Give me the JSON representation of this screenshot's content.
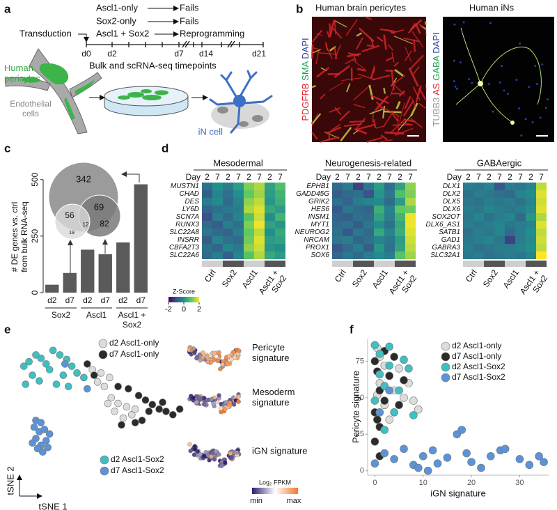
{
  "panel_labels": [
    "a",
    "b",
    "c",
    "d",
    "e",
    "f"
  ],
  "panel_a": {
    "transduction": "Transduction",
    "conditions": [
      "Ascl1-only",
      "Sox2-only",
      "Ascl1 + Sox2"
    ],
    "outcomes": [
      "Fails",
      "Fails",
      "Reprogramming"
    ],
    "timepoints": [
      "d0",
      "d2",
      "d7",
      "d14",
      "d21"
    ],
    "timeline_label": "Bulk and scRNA-seq timepoints",
    "cell_labels": [
      "Human pericytes",
      "Endothelial cells",
      "iN cell"
    ]
  },
  "panel_b": {
    "images": [
      {
        "title": "Human brain pericytes",
        "stains": [
          "PDGFRB",
          "SMA",
          "DAPI"
        ],
        "stain_colors": [
          "#e8202a",
          "#1aa34a",
          "#2b3f9e"
        ]
      },
      {
        "title": "Human iNs",
        "stains": [
          "TUBB3",
          "AS",
          "GABA",
          "DAPI"
        ],
        "stain_colors": [
          "#9a9a9a",
          "#e8202a",
          "#1aa34a",
          "#2b3f9e"
        ]
      }
    ]
  },
  "chart_data": [
    {
      "type": "bar",
      "y_label": [
        "# DE genes vs. ctrl",
        "from bulk RNA-seq"
      ],
      "categories": [
        "d2",
        "d7",
        "d2",
        "d7",
        "d2",
        "d7"
      ],
      "groups": [
        "Sox2",
        "Ascl1",
        "Ascl1 + Sox2"
      ],
      "values": [
        35,
        87,
        190,
        170,
        222,
        479
      ],
      "color": "#5a5a5a",
      "ylim": [
        0,
        530
      ],
      "yticks": [
        0,
        250,
        500
      ],
      "venn": [
        342,
        56,
        69,
        82,
        12,
        19
      ]
    },
    {
      "type": "heatmap",
      "title": "Mesodermal",
      "x_label": "Day",
      "x": [
        2,
        7,
        2,
        7,
        2,
        7,
        2,
        7
      ],
      "groups": [
        "Ctrl",
        "Sox2",
        "Ascl1",
        "Ascl1 + Sox2"
      ],
      "group_colors": [
        "#cfcfcf",
        "#555555",
        "#cfcfcf",
        "#555555"
      ],
      "rows": [
        "MUSTN1",
        "CHAD",
        "DES",
        "LY6D",
        "SCN7A",
        "RUNX3",
        "SLC22A8",
        "INSRR",
        "CBFA2T3",
        "SLC22A6"
      ],
      "values": [
        [
          -0.5,
          0,
          -0.3,
          0.2,
          1.2,
          1.5,
          0.3,
          0.8
        ],
        [
          -0.8,
          -0.2,
          -0.5,
          0,
          1.0,
          1.4,
          0.2,
          0.6
        ],
        [
          -0.3,
          -0.1,
          -0.6,
          -0.2,
          1.3,
          1.6,
          0.1,
          0.5
        ],
        [
          -0.7,
          -0.5,
          -0.4,
          -0.3,
          1.5,
          1.8,
          0.4,
          0.2
        ],
        [
          -1,
          -0.3,
          -0.6,
          -0.2,
          0.9,
          1.7,
          0,
          0.6
        ],
        [
          -0.6,
          -0.8,
          -0.3,
          -0.5,
          1.2,
          1.9,
          0.3,
          0.1
        ],
        [
          -0.4,
          -0.6,
          -0.7,
          -0.3,
          1.0,
          1.6,
          0,
          0.4
        ],
        [
          -0.8,
          -0.2,
          -0.5,
          -0.6,
          1.1,
          1.8,
          0.2,
          0.3
        ],
        [
          -0.5,
          -0.7,
          -0.2,
          -0.4,
          1.3,
          1.7,
          0.1,
          0
        ],
        [
          -0.6,
          -0.3,
          -0.8,
          -0.2,
          0.9,
          1.5,
          0.4,
          0.2
        ]
      ],
      "colorbar": {
        "title": "Z-Score",
        "lim": [
          -2,
          2
        ],
        "ticks": [
          -2,
          0,
          2
        ],
        "colors": [
          "#440154",
          "#3b528b",
          "#21908d",
          "#5dc963",
          "#fde725"
        ]
      }
    },
    {
      "type": "heatmap",
      "title": "Neurogenesis-related",
      "x_label": "Day",
      "x": [
        2,
        7,
        2,
        7,
        2,
        7,
        2,
        7
      ],
      "groups": [
        "Ctrl",
        "Sox2",
        "Ascl1",
        "Ascl1 + Sox2"
      ],
      "group_colors": [
        "#cfcfcf",
        "#555555",
        "#cfcfcf",
        "#555555"
      ],
      "rows": [
        "EPHB1",
        "GADD45G",
        "GRIK2",
        "HES6",
        "INSM1",
        "MYT1",
        "NEUROG2",
        "NRCAM",
        "PROX1",
        "SOX6"
      ],
      "values": [
        [
          -0.6,
          -0.3,
          -1.2,
          -0.4,
          0.2,
          -0.5,
          0.3,
          1.3
        ],
        [
          -0.8,
          -0.6,
          -0.5,
          -1.0,
          0.1,
          -0.4,
          0.8,
          1.2
        ],
        [
          -0.5,
          -0.7,
          -0.3,
          -0.2,
          -0.1,
          -0.6,
          0.2,
          1.5
        ],
        [
          -0.9,
          -0.4,
          -0.6,
          -0.7,
          0.5,
          -0.2,
          1.0,
          1.1
        ],
        [
          -0.7,
          -0.8,
          -0.5,
          -0.6,
          0.3,
          -0.3,
          0.6,
          1.9
        ],
        [
          -0.6,
          -0.5,
          -0.8,
          -0.4,
          0,
          -0.5,
          0.4,
          1.9
        ],
        [
          -0.5,
          -0.9,
          -0.4,
          -0.6,
          0.4,
          -0.2,
          0.5,
          1.8
        ],
        [
          -0.4,
          -0.3,
          -0.7,
          -0.5,
          -0.2,
          -0.4,
          0.2,
          1.7
        ],
        [
          -0.9,
          -0.6,
          -0.3,
          -0.8,
          0.1,
          -0.5,
          0.3,
          1.6
        ],
        [
          -0.7,
          -0.4,
          -0.6,
          -0.3,
          -0.1,
          -0.3,
          0.9,
          1.4
        ]
      ]
    },
    {
      "type": "heatmap",
      "title": "GABAergic",
      "x_label": "Day",
      "x": [
        2,
        7,
        2,
        7,
        2,
        7,
        2,
        7
      ],
      "groups": [
        "Ctrl",
        "Sox2",
        "Ascl1",
        "Ascl1 + Sox2"
      ],
      "group_colors": [
        "#cfcfcf",
        "#555555",
        "#cfcfcf",
        "#555555"
      ],
      "rows": [
        "DLX1",
        "DLX2",
        "DLX5",
        "DLX6",
        "SOX2OT",
        "DLX6_AS1",
        "SATB1",
        "GAD1",
        "GABRA3",
        "SLC32A1"
      ],
      "values": [
        [
          -0.3,
          -0.4,
          -0.2,
          -0.9,
          -0.3,
          -0.4,
          -0.2,
          1.6
        ],
        [
          -0.5,
          -0.3,
          -0.4,
          -0.5,
          -0.6,
          -0.2,
          -0.1,
          1.8
        ],
        [
          -0.4,
          -0.5,
          -0.3,
          -0.4,
          -0.3,
          -0.5,
          -0.2,
          1.7
        ],
        [
          -0.3,
          -0.4,
          -0.2,
          -0.3,
          -0.4,
          -0.3,
          -0.1,
          1.8
        ],
        [
          -0.4,
          -0.2,
          -0.5,
          -0.3,
          -0.2,
          -0.6,
          0.1,
          1.5
        ],
        [
          -0.3,
          -0.4,
          -0.3,
          -0.2,
          -0.4,
          -0.3,
          -0.2,
          1.8
        ],
        [
          -0.5,
          -0.3,
          -0.4,
          -0.2,
          -0.6,
          -0.3,
          0,
          1.6
        ],
        [
          -0.4,
          -0.3,
          -0.2,
          -0.4,
          -1.2,
          -0.3,
          -0.1,
          1.7
        ],
        [
          -0.3,
          -0.5,
          -0.4,
          -0.3,
          -0.3,
          -0.2,
          0,
          1.6
        ],
        [
          -0.4,
          -0.3,
          -0.5,
          -0.4,
          -0.3,
          -0.4,
          -0.2,
          2.0
        ]
      ]
    },
    {
      "type": "scatter",
      "x_label": "tSNE 1",
      "y_label": "tSNE 2",
      "xlim": [
        0,
        100
      ],
      "ylim": [
        0,
        100
      ],
      "series": [
        {
          "name": "d2 Ascl1-only",
          "color": "#dcdcdc",
          "x": [
            45,
            50,
            55,
            52,
            56,
            60,
            58,
            63,
            68,
            65,
            70,
            54,
            48
          ],
          "y": [
            75,
            72,
            68,
            60,
            50,
            45,
            38,
            32,
            35,
            42,
            40,
            45,
            64
          ]
        },
        {
          "name": "d7 Ascl1-only",
          "color": "#2b2b2b",
          "x": [
            42,
            46,
            60,
            66,
            72,
            76,
            80,
            84,
            88,
            92,
            78,
            74,
            70,
            62,
            86,
            96
          ],
          "y": [
            80,
            70,
            60,
            58,
            52,
            48,
            44,
            40,
            38,
            35,
            38,
            30,
            28,
            26,
            46,
            40
          ]
        },
        {
          "name": "d2 Ascl1-Sox2",
          "color": "#3fbfc0",
          "x": [
            5,
            8,
            12,
            15,
            18,
            22,
            26,
            30,
            33,
            36,
            10,
            14,
            20,
            28,
            40,
            6,
            24,
            31
          ],
          "y": [
            78,
            82,
            88,
            85,
            80,
            92,
            88,
            84,
            78,
            72,
            70,
            65,
            75,
            70,
            68,
            62,
            62,
            60
          ]
        },
        {
          "name": "d7 Ascl1-Sox2",
          "color": "#5b93d6",
          "x": [
            10,
            12,
            15,
            18,
            14,
            11,
            17,
            20,
            13,
            16,
            19,
            12,
            15,
            29,
            42
          ],
          "y": [
            10,
            14,
            8,
            12,
            20,
            24,
            22,
            18,
            5,
            2,
            6,
            30,
            28,
            80,
            58
          ]
        }
      ],
      "insets": [
        "Pericyte signature",
        "Mesoderm signature",
        "iGN signature"
      ],
      "colorbar": {
        "title": "Log₂ FPKM",
        "labels": [
          "min",
          "max"
        ],
        "colors": [
          "#2d1e6e",
          "#ffffff",
          "#f07a2a"
        ]
      }
    },
    {
      "type": "scatter",
      "x_label": "iGN signature",
      "y_label": "Pericyte signature",
      "xlim": [
        -1.5,
        36
      ],
      "ylim": [
        -3,
        90
      ],
      "xticks": [
        0,
        10,
        20,
        30
      ],
      "yticks": [
        0,
        25,
        50,
        75
      ],
      "series": [
        {
          "name": "d2 Ascl1-only",
          "color": "#dcdcdc",
          "x": [
            0.5,
            1,
            2,
            3,
            1,
            4,
            6,
            8,
            9,
            2,
            5,
            7,
            0.5,
            3
          ],
          "y": [
            84,
            78,
            72,
            65,
            60,
            55,
            50,
            48,
            42,
            45,
            70,
            60,
            52,
            35
          ]
        },
        {
          "name": "d7 Ascl1-only",
          "color": "#2b2b2b",
          "x": [
            0,
            0.5,
            1,
            2,
            0,
            1,
            3,
            4,
            0,
            1,
            5,
            2,
            0.5,
            6
          ],
          "y": [
            75,
            68,
            55,
            48,
            40,
            30,
            65,
            78,
            20,
            10,
            45,
            82,
            35,
            62
          ]
        },
        {
          "name": "d2 Ascl1-Sox2",
          "color": "#3fbfc0",
          "x": [
            0,
            1,
            3,
            2,
            4,
            0,
            6,
            8,
            2,
            1,
            5,
            7,
            3
          ],
          "y": [
            86,
            80,
            72,
            58,
            40,
            48,
            76,
            38,
            28,
            66,
            55,
            70,
            85
          ]
        },
        {
          "name": "d7 Ascl1-Sox2",
          "color": "#5b93d6",
          "x": [
            0,
            2,
            4,
            6,
            8,
            10,
            12,
            13,
            15,
            17,
            18,
            19,
            20,
            22,
            24,
            26,
            27,
            30,
            32,
            34,
            35,
            1,
            3,
            9,
            11
          ],
          "y": [
            5,
            12,
            8,
            15,
            4,
            10,
            14,
            5,
            9,
            25,
            28,
            12,
            6,
            2,
            10,
            14,
            15,
            8,
            4,
            10,
            6,
            40,
            55,
            2,
            0
          ]
        }
      ]
    }
  ]
}
